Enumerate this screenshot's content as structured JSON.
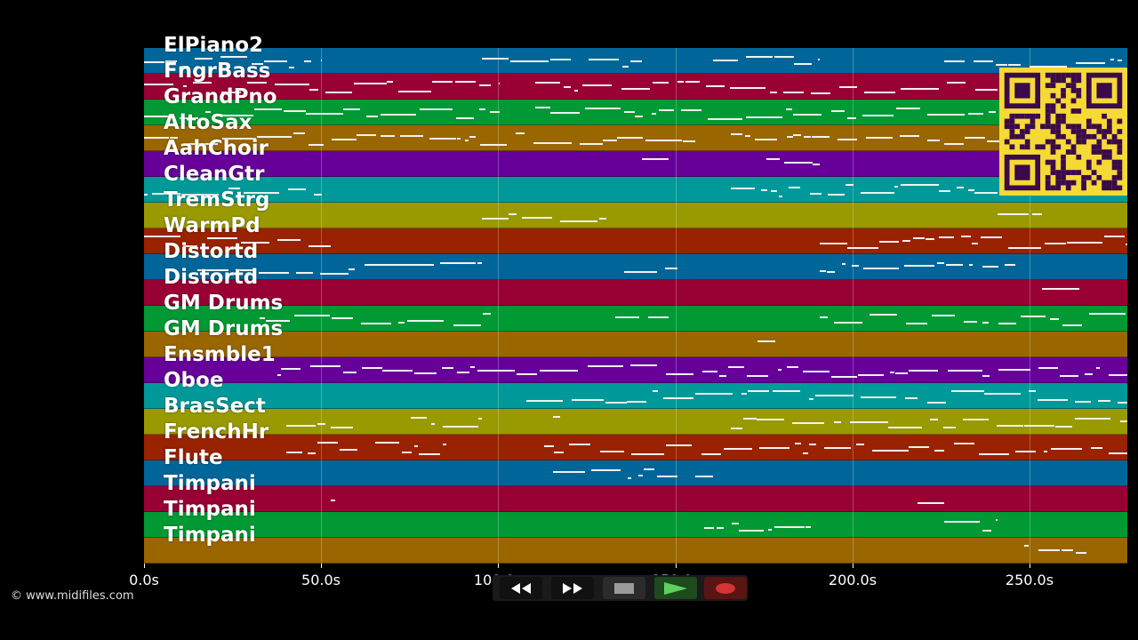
{
  "tracks": [
    {
      "name": "ElPiano2",
      "color": "#006699"
    },
    {
      "name": "FngrBass",
      "color": "#990033"
    },
    {
      "name": "GrandPno",
      "color": "#009933"
    },
    {
      "name": "AltoSax",
      "color": "#996600"
    },
    {
      "name": "AahChoir",
      "color": "#660099"
    },
    {
      "name": "CleanGtr",
      "color": "#009999"
    },
    {
      "name": "TremStrg",
      "color": "#999900"
    },
    {
      "name": "WarmPd",
      "color": "#992200"
    },
    {
      "name": "Distortd",
      "color": "#006699"
    },
    {
      "name": "Distortd",
      "color": "#990033"
    },
    {
      "name": "GM Drums",
      "color": "#009933"
    },
    {
      "name": "GM Drums",
      "color": "#996600"
    },
    {
      "name": "Ensmble1",
      "color": "#660099"
    },
    {
      "name": "Oboe",
      "color": "#009999"
    },
    {
      "name": "BrasSect",
      "color": "#999900"
    },
    {
      "name": "FrenchHr",
      "color": "#992200"
    },
    {
      "name": "Flute",
      "color": "#006699"
    },
    {
      "name": "Timpani",
      "color": "#990033"
    },
    {
      "name": "Timpani",
      "color": "#009933"
    },
    {
      "name": "Timpani",
      "color": "#996600"
    }
  ],
  "timeline": {
    "ticks": [
      "0.0s",
      "50.0s",
      "100.0s",
      "150.0s",
      "200.0s",
      "250.0s"
    ]
  },
  "copyright": "© www.midifiles.com",
  "transport": {
    "rewind_icon": "rewind-icon",
    "forward_icon": "fast-forward-icon",
    "stop_icon": "stop-icon",
    "play_icon": "play-icon",
    "record_icon": "record-icon"
  },
  "colors": {
    "background": "#000000",
    "qr_background": "#f5d936",
    "qr_foreground": "#3a0a4a"
  }
}
